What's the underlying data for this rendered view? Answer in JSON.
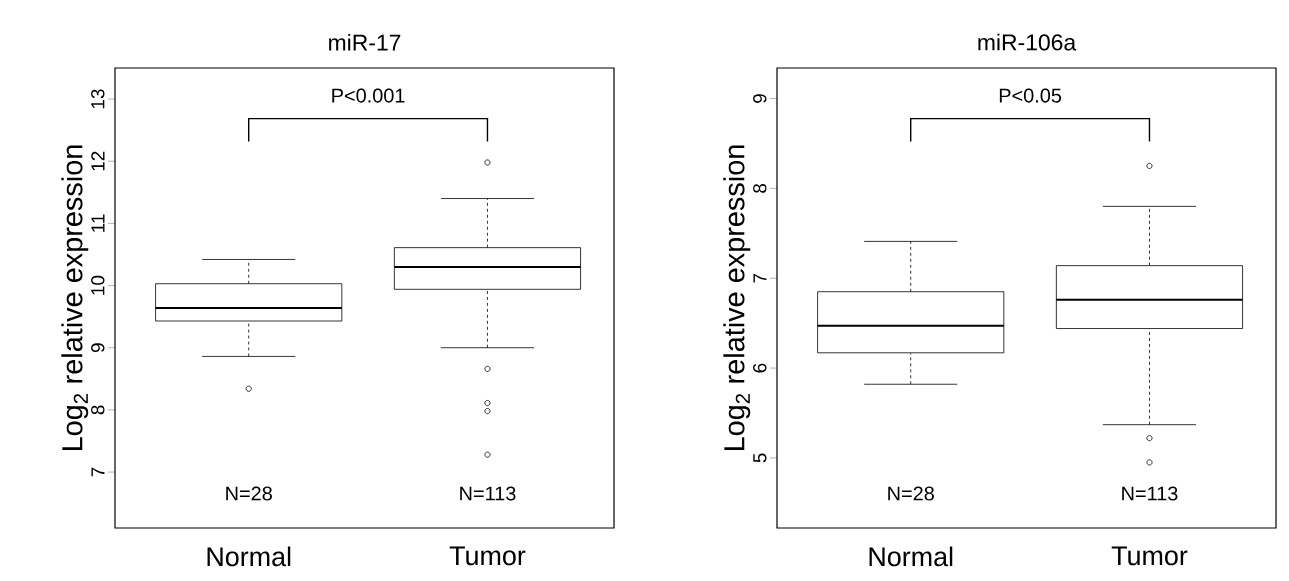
{
  "chart_data": [
    {
      "type": "box",
      "title": "miR-17",
      "ylabel": "Log$_{2}$ relative expression",
      "categories": [
        "Normal",
        "Tumor"
      ],
      "boxes": [
        {
          "low": 8.86,
          "q1": 9.43,
          "median": 9.64,
          "q3": 10.03,
          "high": 10.42,
          "outliers": [
            8.34
          ]
        },
        {
          "low": 9.0,
          "q1": 9.94,
          "median": 10.3,
          "q3": 10.61,
          "high": 11.4,
          "outliers": [
            11.98,
            8.66,
            8.11,
            7.98,
            7.28
          ]
        }
      ],
      "ylim": [
        6.1,
        13.5
      ],
      "yticks": [
        7,
        8,
        9,
        10,
        11,
        12,
        13
      ],
      "annotations": [
        "P<0.001",
        "N=28",
        "N=113"
      ]
    },
    {
      "type": "box",
      "title": "miR-106a",
      "ylabel": "Log$_{2}$ relative expression",
      "categories": [
        "Normal",
        "Tumor"
      ],
      "boxes": [
        {
          "low": 5.82,
          "q1": 6.17,
          "median": 6.47,
          "q3": 6.85,
          "high": 7.41
        },
        {
          "low": 5.37,
          "q1": 6.44,
          "median": 6.76,
          "q3": 7.14,
          "high": 7.8,
          "outliers": [
            8.25,
            5.22,
            4.95
          ]
        }
      ],
      "ylim": [
        4.22,
        9.34
      ],
      "yticks": [
        5,
        6,
        7,
        8,
        9
      ],
      "annotations": [
        "P<0.05",
        "N=28",
        "N=113"
      ]
    }
  ]
}
